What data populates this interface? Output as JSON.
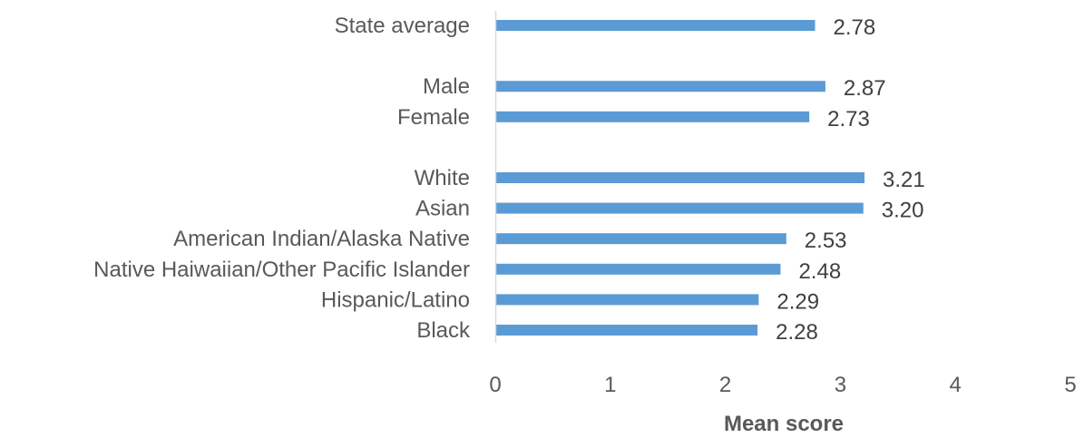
{
  "chart_data": {
    "type": "bar",
    "orientation": "horizontal",
    "title": "",
    "xlabel": "Mean score",
    "ylabel": "",
    "xlim": [
      0,
      5
    ],
    "xticks": [
      0,
      1,
      2,
      3,
      4,
      5
    ],
    "grid": false,
    "legend": "none",
    "bar_color": "#5B9BD5",
    "groups": [
      {
        "items": [
          {
            "label": "State average",
            "value": 2.78,
            "value_label": "2.78"
          }
        ]
      },
      {
        "items": [
          {
            "label": "Male",
            "value": 2.87,
            "value_label": "2.87"
          },
          {
            "label": "Female",
            "value": 2.73,
            "value_label": "2.73"
          }
        ]
      },
      {
        "items": [
          {
            "label": "White",
            "value": 3.21,
            "value_label": "3.21"
          },
          {
            "label": "Asian",
            "value": 3.2,
            "value_label": "3.20"
          },
          {
            "label": "American Indian/Alaska Native",
            "value": 2.53,
            "value_label": "2.53"
          },
          {
            "label": "Native Haiwaiian/Other Pacific Islander",
            "value": 2.48,
            "value_label": "2.48"
          },
          {
            "label": "Hispanic/Latino",
            "value": 2.29,
            "value_label": "2.29"
          },
          {
            "label": "Black",
            "value": 2.28,
            "value_label": "2.28"
          }
        ]
      }
    ]
  }
}
